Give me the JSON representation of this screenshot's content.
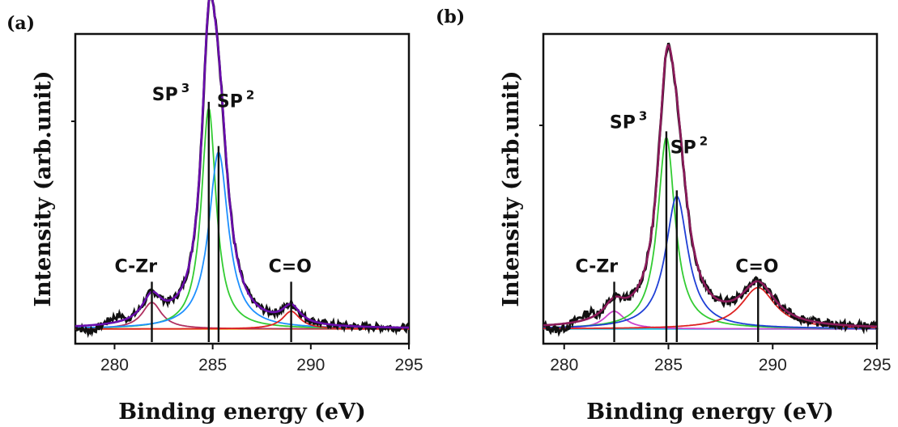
{
  "chart_data": [
    {
      "panel": "(a)",
      "type": "line",
      "xlabel": "Binding energy (eV)",
      "ylabel": "Intensity (arb.unit)",
      "xlim": [
        278,
        295
      ],
      "ylim": [
        0,
        1.05
      ],
      "x_ticks": [
        280,
        285,
        290,
        295
      ],
      "x_tick_labels": [
        "280",
        "285",
        "290",
        "295"
      ],
      "baseline": 0.05,
      "peaks": [
        {
          "label": "C-Zr",
          "center": 281.9,
          "height": 0.09,
          "width": 0.6
        },
        {
          "label": "SP",
          "sup": "3",
          "center": 284.8,
          "height": 0.75,
          "width": 0.45
        },
        {
          "label": "SP",
          "sup": "2",
          "center": 285.3,
          "height": 0.6,
          "width": 0.6
        },
        {
          "label": "C=O",
          "center": 289.0,
          "height": 0.06,
          "width": 0.55
        }
      ],
      "series": [
        {
          "role": "raw",
          "color": "#111111"
        },
        {
          "role": "envelope",
          "color": "#6a0dad"
        },
        {
          "role": "component-sp3",
          "color": "#33cc33"
        },
        {
          "role": "component-sp2",
          "color": "#1e90ff"
        },
        {
          "role": "component-czr",
          "color": "#b03060"
        },
        {
          "role": "component-co",
          "color": "#dd2222"
        },
        {
          "role": "background",
          "color": "#e8a020"
        }
      ]
    },
    {
      "panel": "(b)",
      "type": "line",
      "xlabel": "Binding energy (eV)",
      "ylabel": "Intensity (arb.unit)",
      "xlim": [
        279,
        295
      ],
      "ylim": [
        0,
        1.05
      ],
      "x_ticks": [
        280,
        285,
        290,
        295
      ],
      "x_tick_labels": [
        "280",
        "285",
        "290",
        "295"
      ],
      "baseline": 0.05,
      "peaks": [
        {
          "label": "C-Zr",
          "center": 282.4,
          "height": 0.06,
          "width": 0.6
        },
        {
          "label": "SP",
          "sup": "3",
          "center": 284.9,
          "height": 0.65,
          "width": 0.5
        },
        {
          "label": "SP",
          "sup": "2",
          "center": 285.4,
          "height": 0.45,
          "width": 0.65
        },
        {
          "label": "C=O",
          "center": 289.3,
          "height": 0.14,
          "width": 1.0
        }
      ],
      "series": [
        {
          "role": "raw",
          "color": "#111111"
        },
        {
          "role": "envelope",
          "color": "#8b1a5a"
        },
        {
          "role": "component-sp3",
          "color": "#33cc33"
        },
        {
          "role": "component-sp2",
          "color": "#1f3fd6"
        },
        {
          "role": "component-czr",
          "color": "#cc44cc"
        },
        {
          "role": "component-co",
          "color": "#dd2222"
        },
        {
          "role": "background",
          "color": "#22c0e0"
        }
      ]
    }
  ]
}
